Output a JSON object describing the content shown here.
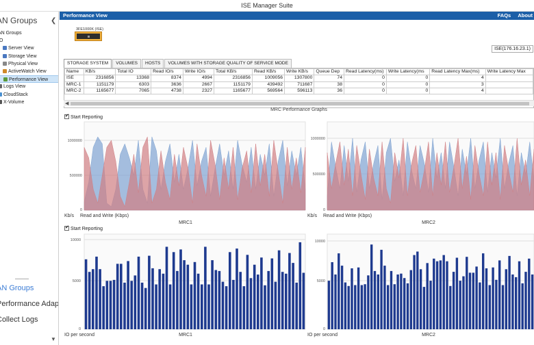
{
  "app": {
    "title": "ISE Manager Suite"
  },
  "sidebar": {
    "header": "AN Groups",
    "items": [
      {
        "label": "AN Groups",
        "level": 0
      },
      {
        "label": "IO",
        "level": 0
      },
      {
        "label": "Server View",
        "level": 1,
        "icon": "server-icon",
        "color": "#4a78c0"
      },
      {
        "label": "Storage View",
        "level": 1,
        "icon": "storage-icon",
        "color": "#4a78c0"
      },
      {
        "label": "Physical View",
        "level": 1,
        "icon": "physical-icon",
        "color": "#888"
      },
      {
        "label": "ActiveWatch View",
        "level": 1,
        "icon": "activewatch-icon",
        "color": "#d08a2a"
      },
      {
        "label": "Performance View",
        "level": 1,
        "icon": "performance-icon",
        "color": "#5a9a3a",
        "selected": true
      },
      {
        "label": "Logs View",
        "level": 0,
        "icon": "logs-icon",
        "color": "#666"
      },
      {
        "label": "CloudStack",
        "level": 0,
        "icon": "cloudstack-icon",
        "color": "#4a90d0"
      },
      {
        "label": "X-Volume",
        "level": 0,
        "icon": "xvolume-icon",
        "color": "#555"
      }
    ],
    "bottom": [
      {
        "label": "AN Groups",
        "selected": true
      },
      {
        "label": "Performance Adapter"
      },
      {
        "label": "Collect Logs"
      }
    ]
  },
  "header": {
    "title": "Performance View",
    "links": [
      "FAQs",
      "About"
    ]
  },
  "device": {
    "label": "3FE1000K (ISE)",
    "ip": "ISE(176.16.23.1)"
  },
  "tabs": [
    "STORAGE SYSTEM",
    "VOLUMES",
    "HOSTS",
    "VOLUMES WITH STORAGE QUALITY OF SERVICE MODE"
  ],
  "table": {
    "columns": [
      "Name",
      "KB/s",
      "Total IO",
      "Read IO/s",
      "Write IO/s",
      "Total KB/s",
      "Read KB/s",
      "Write KB/s",
      "Queue Dep",
      "Read Latency(ms)",
      "Write Latency(ms",
      "Read Latency Max(ms)",
      "Write Latency Max"
    ],
    "rows": [
      [
        "ISE",
        "2316856",
        "13368",
        "8374",
        "4994",
        "2316856",
        "1009056",
        "1307800",
        "74",
        "0",
        "0",
        "4",
        ""
      ],
      [
        "MRC-1",
        "1151179",
        "6303",
        "3636",
        "2667",
        "1151179",
        "439492",
        "711687",
        "38",
        "0",
        "0",
        "3",
        ""
      ],
      [
        "MRC-2",
        "1165677",
        "7065",
        "4738",
        "2327",
        "1165677",
        "569564",
        "596113",
        "36",
        "0",
        "0",
        "4",
        ""
      ]
    ]
  },
  "graphs": {
    "title": "MRC Performance Graphs",
    "start_reporting": "Start Reporting",
    "colors": {
      "read": "#7fa3d1",
      "write": "#d07f83",
      "bar": "#1e3a8f"
    }
  },
  "chart_data": [
    {
      "type": "area",
      "xlabel": "MRC1",
      "ylabel": "Kb/s",
      "legend": "Read and Write (Kbps)",
      "ylim": [
        0,
        1200000
      ],
      "yticks": [
        "1000000",
        "500000",
        "0"
      ],
      "series": [
        {
          "values": [
            120000,
            400000,
            900000,
            1050000,
            950000,
            100000,
            50000,
            300000,
            800000,
            950000,
            750000,
            500000,
            1000000,
            300000,
            100000,
            1050000,
            850000,
            300000,
            700000,
            950000,
            400000,
            800000,
            300000,
            600000,
            1000000,
            350000,
            700000,
            900000,
            200000,
            600000,
            950000,
            500000,
            850000,
            300000,
            1000000,
            650000,
            400000,
            900000,
            300000,
            800000,
            500000,
            950000,
            200000,
            700000,
            1000000,
            350000,
            850000,
            500000,
            900000,
            300000
          ]
        },
        {
          "values": [
            900000,
            750000,
            300000,
            100000,
            500000,
            900000,
            1000000,
            700000,
            200000,
            50000,
            400000,
            800000,
            250000,
            900000,
            1050000,
            100000,
            300000,
            850000,
            400000,
            150000,
            800000,
            350000,
            900000,
            600000,
            100000,
            950000,
            500000,
            200000,
            1000000,
            650000,
            150000,
            750000,
            300000,
            900000,
            150000,
            600000,
            850000,
            250000,
            950000,
            350000,
            800000,
            200000,
            1000000,
            550000,
            100000,
            900000,
            300000,
            750000,
            250000,
            900000
          ]
        }
      ]
    },
    {
      "type": "area",
      "xlabel": "MRC2",
      "ylabel": "Kb/s",
      "legend": "Read and Write (Kbps)",
      "ylim": [
        0,
        1200000
      ],
      "yticks": [
        "1000000",
        "500000",
        "0"
      ],
      "series": [
        {
          "values": [
            200000,
            950000,
            600000,
            300000,
            900000,
            400000,
            1000000,
            250000,
            700000,
            950000,
            300000,
            650000,
            900000,
            150000,
            800000,
            1000000,
            400000,
            700000,
            200000,
            950000,
            550000,
            300000,
            900000,
            650000,
            250000,
            1000000,
            450000,
            800000,
            300000,
            950000,
            600000,
            200000,
            850000,
            500000,
            1000000,
            300000,
            700000,
            950000,
            250000,
            800000,
            450000,
            1000000,
            300000,
            650000,
            900000,
            200000,
            800000,
            500000,
            950000,
            400000
          ]
        },
        {
          "values": [
            800000,
            300000,
            650000,
            950000,
            350000,
            850000,
            200000,
            900000,
            500000,
            150000,
            850000,
            450000,
            200000,
            950000,
            300000,
            100000,
            800000,
            450000,
            1000000,
            200000,
            650000,
            900000,
            250000,
            550000,
            950000,
            200000,
            800000,
            350000,
            950000,
            250000,
            600000,
            1000000,
            300000,
            750000,
            150000,
            900000,
            500000,
            200000,
            950000,
            350000,
            800000,
            150000,
            900000,
            550000,
            250000,
            1000000,
            350000,
            700000,
            200000,
            850000
          ]
        }
      ]
    },
    {
      "type": "bar",
      "xlabel": "MRC1",
      "ylabel": "IO per second",
      "ylim": [
        0,
        10500
      ],
      "yticks": [
        "10000",
        "5000",
        "0"
      ],
      "values": [
        7800,
        6400,
        6700,
        8100,
        6700,
        4800,
        5400,
        5400,
        5500,
        7300,
        7300,
        5200,
        7600,
        5400,
        6000,
        8100,
        5200,
        4600,
        8200,
        6800,
        5000,
        6700,
        6200,
        9200,
        5000,
        8600,
        6500,
        8900,
        7700,
        7200,
        5000,
        7500,
        6200,
        5000,
        9200,
        5000,
        7700,
        6600,
        6500,
        5300,
        4800,
        8600,
        5500,
        9000,
        6400,
        4800,
        8300,
        5700,
        7200,
        6100,
        8000,
        4900,
        6500,
        7900,
        5300,
        8800,
        6400,
        6200,
        8500,
        7400,
        5200,
        9700,
        6300
      ]
    },
    {
      "type": "bar",
      "xlabel": "MRC2",
      "ylabel": "IO per second",
      "ylim": [
        0,
        10500
      ],
      "yticks": [
        "10000",
        "5000",
        "0"
      ],
      "values": [
        5500,
        7600,
        6200,
        8600,
        7200,
        5300,
        4900,
        6900,
        5000,
        7000,
        5000,
        5100,
        6100,
        9600,
        6600,
        6200,
        9000,
        7200,
        5000,
        6600,
        5100,
        6200,
        6300,
        5800,
        5200,
        6700,
        8400,
        8800,
        6800,
        4800,
        7500,
        5500,
        8000,
        7700,
        7800,
        8400,
        7700,
        4900,
        6500,
        8100,
        5500,
        6000,
        8200,
        6400,
        6400,
        7100,
        5300,
        8600,
        6900,
        5000,
        7000,
        5600,
        7800,
        5000,
        6800,
        8300,
        6200,
        5900,
        7700,
        5200,
        6500,
        8000,
        6200
      ]
    }
  ]
}
